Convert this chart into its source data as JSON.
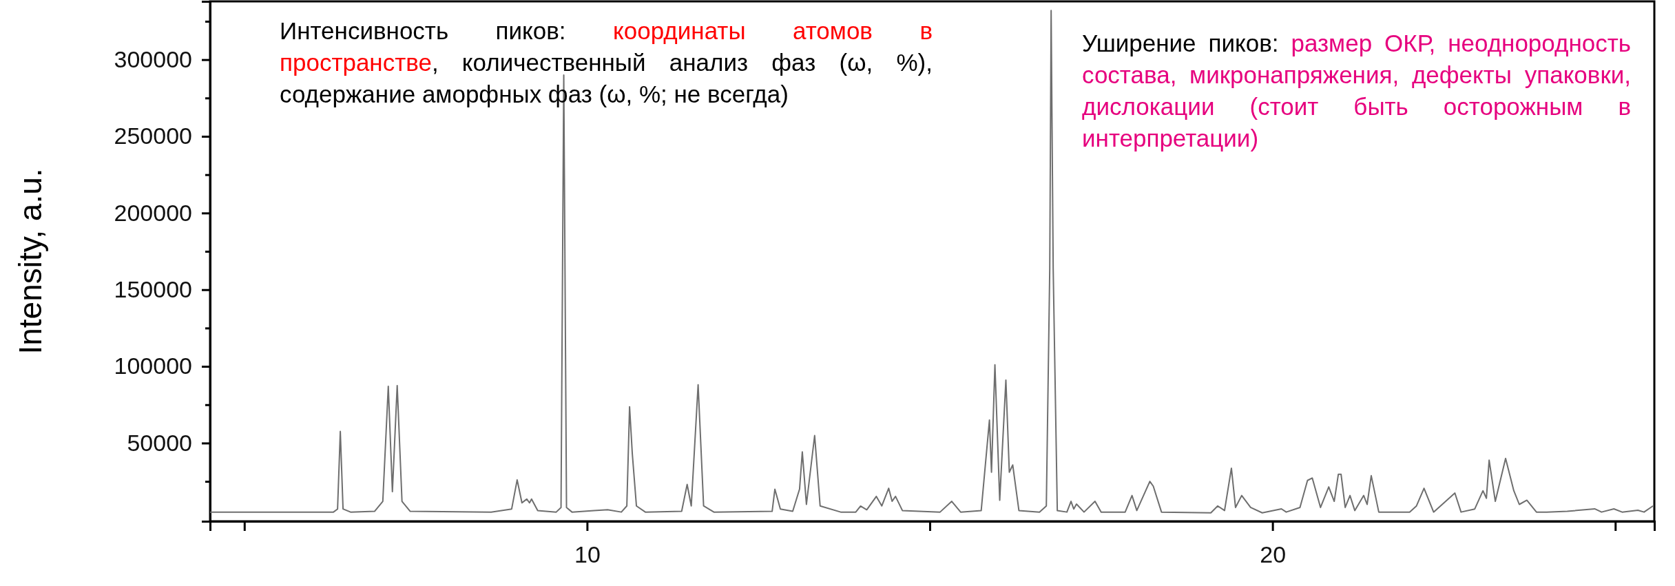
{
  "chart_data": {
    "type": "line",
    "ylabel": "Intensity, a.u.",
    "xlim": [
      4.5,
      25.57
    ],
    "xticks": [
      {
        "value": 5,
        "label": null
      },
      10,
      {
        "value": 15,
        "label": null
      },
      20,
      {
        "value": 25,
        "label": null
      }
    ],
    "ylim": [
      -1000,
      338000
    ],
    "yticks": [
      {
        "value": 25000,
        "label": null
      },
      50000,
      {
        "value": 75000,
        "label": null
      },
      100000,
      {
        "value": 125000,
        "label": null
      },
      150000,
      {
        "value": 175000,
        "label": null
      },
      200000,
      {
        "value": 225000,
        "label": null
      },
      250000,
      {
        "value": 275000,
        "label": null
      },
      300000,
      {
        "value": 325000,
        "label": null
      }
    ],
    "grid": false,
    "marker": "none",
    "line_style": "solid",
    "annotations": [
      "Интенсивность пиков: ",
      "координаты атомов в пространстве",
      ", количественный анализ фаз (ω, %), содержание аморфных фаз (ω, %; не всегда)",
      "Уширение пиков: ",
      "размер ОКР, неоднородность состава, микронапряжения, дефекты упаковки, дислокации (стоит быть осторожным в интерпретации)"
    ],
    "series": [
      {
        "color": "#6e6e6e",
        "x": [
          4.5,
          6.3,
          6.36,
          6.4,
          6.44,
          6.55,
          6.9,
          7.02,
          7.1,
          7.16,
          7.23,
          7.3,
          7.42,
          8.6,
          8.9,
          8.98,
          9.05,
          9.12,
          9.16,
          9.19,
          9.28,
          9.55,
          9.62,
          9.66,
          9.7,
          9.78,
          10.1,
          10.3,
          10.5,
          10.58,
          10.62,
          10.66,
          10.72,
          10.85,
          11.38,
          11.46,
          11.52,
          11.62,
          11.7,
          11.85,
          12.7,
          12.74,
          12.82,
          13.0,
          13.1,
          13.14,
          13.2,
          13.32,
          13.4,
          13.7,
          13.92,
          13.99,
          14.08,
          14.22,
          14.3,
          14.4,
          14.45,
          14.5,
          14.6,
          15.15,
          15.32,
          15.45,
          15.75,
          15.87,
          15.9,
          15.95,
          16.02,
          16.11,
          16.16,
          16.21,
          16.3,
          16.6,
          16.7,
          16.75,
          16.77,
          16.8,
          16.86,
          17.0,
          17.06,
          17.1,
          17.14,
          17.25,
          17.41,
          17.5,
          17.85,
          17.95,
          18.02,
          18.21,
          18.26,
          18.38,
          19.1,
          19.2,
          19.3,
          19.4,
          19.46,
          19.55,
          19.68,
          19.85,
          20.13,
          20.2,
          20.4,
          20.51,
          20.58,
          20.7,
          20.82,
          20.9,
          20.96,
          21.0,
          21.06,
          21.13,
          21.2,
          21.33,
          21.38,
          21.44,
          21.55,
          22.0,
          22.1,
          22.21,
          22.35,
          22.66,
          22.75,
          22.95,
          23.07,
          23.12,
          23.16,
          23.25,
          23.4,
          23.52,
          23.6,
          23.71,
          23.85,
          24.0,
          24.3,
          24.7,
          24.8,
          24.98,
          25.1,
          25.33,
          25.42,
          25.55
        ],
        "values": [
          5000,
          5000,
          7000,
          57600,
          7000,
          5000,
          5500,
          12000,
          87000,
          18300,
          87500,
          12000,
          5500,
          5000,
          7000,
          26000,
          11000,
          13500,
          11000,
          13500,
          6000,
          5000,
          8000,
          290000,
          8000,
          5000,
          6000,
          6500,
          5000,
          9000,
          73700,
          43000,
          9000,
          5000,
          5500,
          23000,
          9000,
          88000,
          9000,
          5000,
          5500,
          19900,
          7000,
          5500,
          20000,
          44200,
          10000,
          54900,
          9000,
          5000,
          5000,
          8900,
          6500,
          15200,
          9000,
          20500,
          12000,
          15200,
          6000,
          5000,
          12000,
          5000,
          6000,
          65000,
          31000,
          101000,
          12700,
          91000,
          31000,
          35700,
          6000,
          5000,
          9000,
          164000,
          332000,
          164000,
          6000,
          5000,
          12000,
          7000,
          10200,
          5000,
          12000,
          5000,
          5000,
          15800,
          6000,
          25000,
          21900,
          5000,
          4500,
          9000,
          6000,
          33600,
          8000,
          15800,
          8000,
          4500,
          7100,
          5000,
          8000,
          25600,
          27200,
          8000,
          21400,
          12000,
          29600,
          29600,
          8000,
          15800,
          6000,
          15800,
          10000,
          28700,
          5000,
          5000,
          9000,
          20500,
          5000,
          17400,
          5000,
          7000,
          18900,
          14000,
          38800,
          12000,
          40000,
          18900,
          10000,
          12700,
          5000,
          5000,
          5500,
          7100,
          5000,
          7100,
          5000,
          6200,
          5000,
          9000
        ]
      }
    ]
  }
}
